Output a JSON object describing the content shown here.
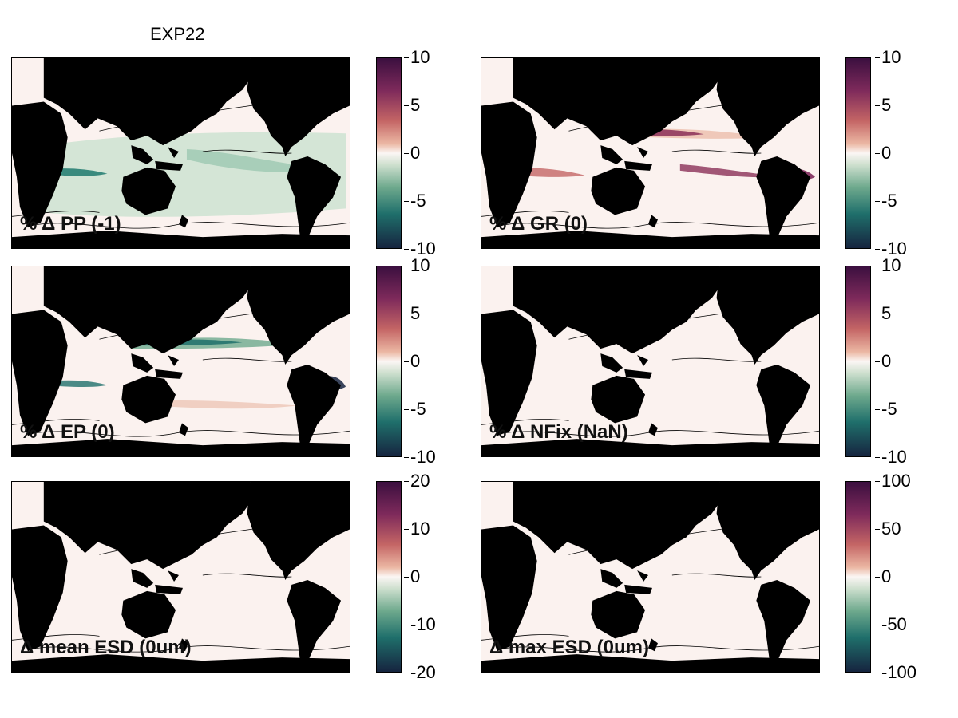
{
  "figure_title": "EXP22",
  "colors": {
    "land": "#000000",
    "ocean_neutral": "#fbf2ef",
    "green": "#cfe3d3",
    "red": "#e9b7a3"
  },
  "panels": [
    {
      "label": "% Δ PP (-1)",
      "pattern": "greenish",
      "colorbar": {
        "ticks": [
          "10",
          "5",
          "0",
          "-5",
          "-10"
        ]
      }
    },
    {
      "label": "% Δ GR (0)",
      "pattern": "mixed",
      "colorbar": {
        "ticks": [
          "10",
          "5",
          "0",
          "-5",
          "-10"
        ]
      }
    },
    {
      "label": "% Δ EP (0)",
      "pattern": "mixed-green",
      "colorbar": {
        "ticks": [
          "10",
          "5",
          "0",
          "-5",
          "-10"
        ]
      }
    },
    {
      "label": "% Δ NFix (NaN)",
      "pattern": "neutral",
      "colorbar": {
        "ticks": [
          "10",
          "5",
          "0",
          "-5",
          "-10"
        ]
      }
    },
    {
      "label": "Δ mean ESD (0um)",
      "pattern": "neutral",
      "colorbar": {
        "ticks": [
          "20",
          "10",
          "0",
          "-10",
          "-20"
        ]
      }
    },
    {
      "label": "Δ max ESD (0um)",
      "pattern": "neutral",
      "colorbar": {
        "ticks": [
          "100",
          "50",
          "0",
          "-50",
          "-100"
        ]
      }
    }
  ]
}
